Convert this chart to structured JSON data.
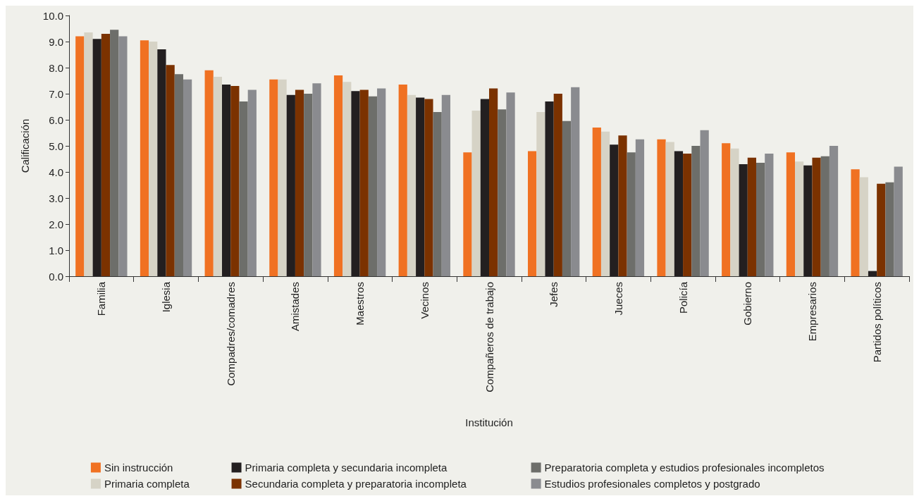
{
  "chart_data": {
    "type": "bar",
    "xlabel": "Institución",
    "ylabel": "Calificación",
    "categories": [
      "Familia",
      "Iglesia",
      "Compadres/comadres",
      "Amistades",
      "Maestros",
      "Vecinos",
      "Compañeros de trabajo",
      "Jefes",
      "Jueces",
      "Policía",
      "Gobierno",
      "Empresarios",
      "Partidos políticos"
    ],
    "series": [
      {
        "name": "Sin instrucción",
        "color": "#f07122",
        "values": [
          9.2,
          9.05,
          7.9,
          7.55,
          7.7,
          7.35,
          4.75,
          4.8,
          5.7,
          5.25,
          5.1,
          4.75,
          4.1
        ]
      },
      {
        "name": "Primaria completa",
        "color": "#d6d3c6",
        "values": [
          9.35,
          9.0,
          7.65,
          7.55,
          7.45,
          6.95,
          6.35,
          6.3,
          5.55,
          5.15,
          4.9,
          4.4,
          3.8
        ]
      },
      {
        "name": "Primaria completa y secundaria incompleta",
        "color": "#231f20",
        "values": [
          9.1,
          8.7,
          7.35,
          6.95,
          7.1,
          6.85,
          6.8,
          6.7,
          5.05,
          4.8,
          4.3,
          4.25,
          0.2
        ]
      },
      {
        "name": "Secundaria completa y preparatoria incompleta",
        "color": "#7b3200",
        "values": [
          9.3,
          8.1,
          7.3,
          7.15,
          7.15,
          6.8,
          7.2,
          7.0,
          5.4,
          4.7,
          4.55,
          4.55,
          3.55
        ]
      },
      {
        "name": "Preparatoria completa y estudios profesionales incompletos",
        "color": "#6d6e6a",
        "values": [
          9.45,
          7.75,
          6.7,
          7.0,
          6.9,
          6.3,
          6.4,
          5.95,
          4.75,
          5.0,
          4.35,
          4.6,
          3.6
        ]
      },
      {
        "name": "Estudios profesionales completos y postgrado",
        "color": "#8a8b8f",
        "values": [
          9.2,
          7.55,
          7.15,
          7.4,
          7.2,
          6.95,
          7.05,
          7.25,
          5.25,
          5.6,
          4.7,
          5.0,
          4.2
        ]
      }
    ],
    "ylim": [
      0,
      10
    ],
    "yticks": [
      {
        "value": 0,
        "label": "0.0"
      },
      {
        "value": 1,
        "label": "1.0"
      },
      {
        "value": 2,
        "label": "2.0"
      },
      {
        "value": 3,
        "label": "3.0"
      },
      {
        "value": 4,
        "label": "4.0"
      },
      {
        "value": 5,
        "label": "5.0"
      },
      {
        "value": 6,
        "label": "6.0"
      },
      {
        "value": 7,
        "label": "7.0"
      },
      {
        "value": 8,
        "label": "8.0"
      },
      {
        "value": 9,
        "label": "9.0"
      },
      {
        "value": 10,
        "label": "10.0"
      }
    ],
    "grid": false,
    "legend": "bottom"
  }
}
